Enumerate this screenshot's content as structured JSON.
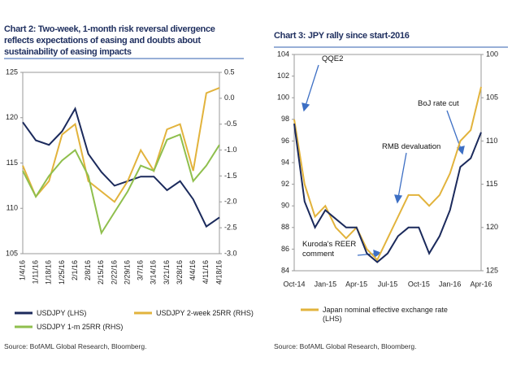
{
  "chart_data": [
    {
      "type": "line",
      "title": "Chart 2: Two-week, 1-month risk reversal divergence reflects expectations of easing and doubts about sustainability of easing impacts",
      "categories": [
        "1/4/16",
        "1/11/16",
        "1/18/16",
        "1/25/16",
        "2/1/16",
        "2/8/16",
        "2/15/16",
        "2/22/16",
        "2/29/16",
        "3/7/16",
        "3/14/16",
        "3/21/16",
        "3/28/16",
        "4/4/16",
        "4/11/16",
        "4/18/16"
      ],
      "series": [
        {
          "name": "USDJPY (LHS)",
          "color": "#1b2a5c",
          "values": [
            119.5,
            117.5,
            117,
            118.5,
            121,
            116,
            114,
            112.5,
            113,
            113.5,
            113.5,
            112,
            113,
            111,
            108,
            109
          ]
        },
        {
          "name": "USDJPY 2-week 25RR (RHS)",
          "color": "#e2b33c",
          "axis": "y2",
          "values": [
            -1.3,
            -1.9,
            -1.6,
            -0.7,
            -0.5,
            -1.6,
            -1.8,
            -2.0,
            -1.6,
            -1.0,
            -1.4,
            -0.6,
            -0.5,
            -1.4,
            0.1,
            0.2
          ]
        },
        {
          "name": "USDJPY 1-m 25RR (RHS)",
          "color": "#8fbf4d",
          "axis": "y2",
          "values": [
            -1.4,
            -1.9,
            -1.5,
            -1.2,
            -1.0,
            -1.5,
            -2.6,
            -2.2,
            -1.8,
            -1.3,
            -1.4,
            -0.8,
            -0.7,
            -1.6,
            -1.3,
            -0.9
          ]
        }
      ],
      "ylim": [
        105,
        125
      ],
      "yticks": [
        105,
        110,
        115,
        120,
        125
      ],
      "y2lim": [
        -3.0,
        0.5
      ],
      "y2ticks": [
        0.5,
        {
          "value": 0,
          "label": "0.0"
        },
        -0.5,
        {
          "value": -1,
          "label": "-1.0"
        },
        -1.5,
        {
          "value": -2,
          "label": "-2.0"
        },
        -2.5,
        {
          "value": -3,
          "label": "-3.0"
        }
      ],
      "source": "Source: BofAML Global Research, Bloomberg."
    },
    {
      "type": "line",
      "title": "Chart 3: JPY rally since start-2016",
      "categories": [
        "Oct-14",
        null,
        null,
        "Jan-15",
        null,
        null,
        "Apr-15",
        null,
        null,
        "Jul-15",
        null,
        null,
        "Oct-15",
        null,
        null,
        "Jan-16",
        null,
        null,
        "Apr-16"
      ],
      "series": [
        {
          "name": "Japan nominal effective exchange rate (LHS)",
          "color": "#e2b33c",
          "values": [
            98,
            92,
            89,
            90,
            88,
            87,
            88,
            86,
            85,
            87,
            89,
            91,
            91,
            90,
            91,
            93,
            96,
            97,
            101
          ]
        },
        {
          "color": "#1b2a5c",
          "axis": "y2",
          "values": [
            108,
            117,
            120,
            118,
            119,
            120,
            120,
            123,
            124,
            123,
            121,
            120,
            120,
            123,
            121,
            118,
            113,
            112,
            109
          ]
        }
      ],
      "ylim": [
        84,
        104
      ],
      "yticks": [
        84,
        86,
        88,
        90,
        92,
        94,
        96,
        98,
        100,
        102,
        104
      ],
      "y2lim": [
        125,
        100
      ],
      "y2ticks": [
        100,
        105,
        110,
        115,
        120,
        125
      ],
      "annotations": [
        "QQE2",
        "BoJ rate cut",
        "RMB devaluation",
        "Kuroda's REER comment"
      ],
      "source": "Source: BofAML Global Research, Bloomberg."
    }
  ]
}
